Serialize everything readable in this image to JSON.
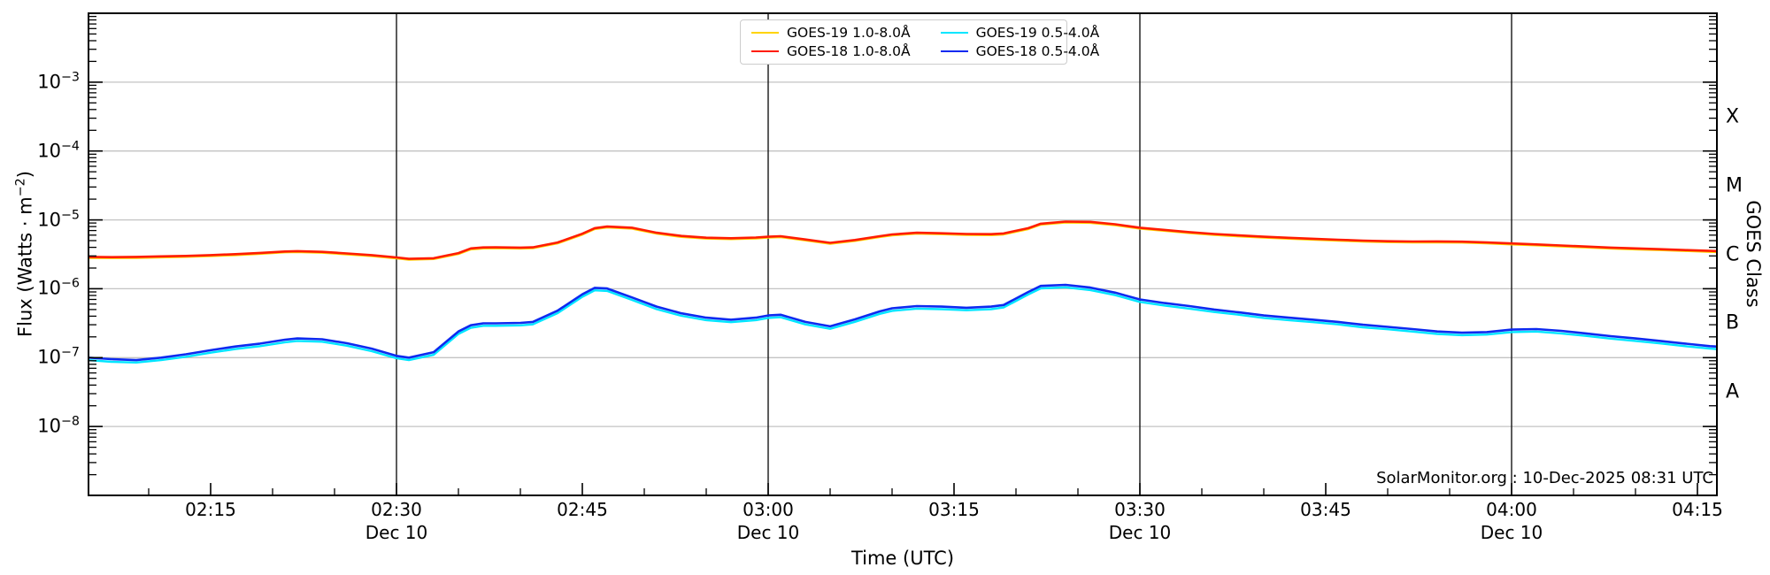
{
  "watermark": "SolarMonitor.org : 10-Dec-2025 08:31 UTC",
  "axes_text": {
    "xlabel": "Time (UTC)",
    "ylabel_parts": [
      "Flux (Watts · m",
      "−2",
      ")"
    ],
    "right_label": "GOES Class"
  },
  "colors": {
    "background": "#ffffff",
    "grid": "#c3c3c3",
    "vline": "#161616",
    "spine": "#000000",
    "legend_border": "#cccccc"
  },
  "chart_data": {
    "type": "line",
    "title": "",
    "xlabel": "Time (UTC)",
    "ylabel": "Flux (Watts · m⁻²)",
    "right_axis_label": "GOES Class",
    "x_axis": {
      "unit": "minutes after 02:00 UTC on 10-Dec-2025",
      "range_minutes": [
        5.14,
        136.57
      ],
      "tick_minutes": [
        15,
        30,
        45,
        60,
        75,
        90,
        105,
        120,
        135
      ],
      "tick_labels": [
        "02:15",
        "02:30",
        "02:45",
        "03:00",
        "03:15",
        "03:30",
        "03:45",
        "04:00",
        "04:15"
      ],
      "date_label": "Dec 10",
      "date_label_minutes": [
        30,
        60,
        90,
        120
      ],
      "vline_minutes": [
        30,
        60,
        90,
        120
      ],
      "minor_tick_step_minutes": 5
    },
    "y_axis": {
      "scale": "log",
      "unit": "Watts per square metre",
      "top_exponent": -2,
      "bottom_exponent": -9,
      "tick_label_exponents": [
        -3,
        -4,
        -5,
        -6,
        -7,
        -8
      ],
      "gridline_exponents": [
        -3,
        -4,
        -5,
        -6,
        -7,
        -8
      ],
      "grid": true
    },
    "goes_class_bands": [
      {
        "label": "X",
        "center_exponent": -3.5
      },
      {
        "label": "M",
        "center_exponent": -4.5
      },
      {
        "label": "C",
        "center_exponent": -5.5
      },
      {
        "label": "B",
        "center_exponent": -6.5
      },
      {
        "label": "A",
        "center_exponent": -7.5
      }
    ],
    "legend_position": "top center, 2 rows, column-major",
    "flux_scale": 1e-08,
    "x_minutes": [
      5.14,
      7,
      9,
      11,
      13,
      15,
      17,
      19,
      21,
      22,
      24,
      26,
      28,
      30,
      31,
      33,
      35,
      36,
      37,
      38,
      40,
      41,
      43,
      45,
      46,
      47,
      49,
      51,
      53,
      55,
      57,
      59,
      60,
      61,
      63,
      65,
      67,
      69,
      70,
      72,
      74,
      76,
      78,
      79,
      81,
      82,
      84,
      86,
      88,
      90,
      92,
      94,
      96,
      98,
      100,
      102,
      104,
      106,
      108,
      110,
      112,
      114,
      116,
      118,
      120,
      122,
      124,
      126,
      128,
      130,
      132,
      134,
      136,
      136.57
    ],
    "series": [
      {
        "name": "GOES-19 1.0-8.0Å",
        "color": "#ffd400",
        "line_width": 2.4,
        "values": [
          281,
          279,
          281,
          286,
          291,
          299,
          308,
          322,
          338,
          341,
          334,
          316,
          299,
          276,
          264,
          270,
          320,
          373,
          386,
          388,
          384,
          388,
          456,
          611,
          737,
          776,
          747,
          631,
          567,
          535,
          526,
          538,
          553,
          563,
          504,
          451,
          495,
          563,
          597,
          631,
          621,
          606,
          601,
          616,
          737,
          854,
          917,
          907,
          839,
          747,
          694,
          645,
          606,
          577,
          553,
          534,
          516,
          500,
          485,
          475,
          470,
          472,
          468,
          456,
          441,
          427,
          412,
          398,
          384,
          373,
          364,
          354,
          344,
          341
        ]
      },
      {
        "name": "GOES-18 1.0-8.0Å",
        "color": "#ff1c00",
        "line_width": 2.6,
        "values": [
          290,
          288,
          290,
          295,
          300,
          308,
          318,
          332,
          348,
          352,
          344,
          326,
          308,
          285,
          272,
          278,
          330,
          385,
          398,
          400,
          396,
          400,
          470,
          630,
          760,
          800,
          770,
          650,
          585,
          552,
          542,
          555,
          570,
          580,
          520,
          465,
          510,
          580,
          615,
          650,
          640,
          625,
          620,
          635,
          760,
          880,
          945,
          935,
          865,
          770,
          715,
          665,
          625,
          595,
          570,
          550,
          532,
          515,
          500,
          490,
          485,
          487,
          482,
          470,
          455,
          440,
          425,
          410,
          396,
          385,
          375,
          365,
          355,
          352
        ]
      },
      {
        "name": "GOES-19 0.5-4.0Å",
        "color": "#00e6ff",
        "line_width": 2.4,
        "values": [
          9.2,
          8.7,
          8.5,
          9.2,
          10.3,
          11.8,
          13.3,
          14.7,
          16.7,
          17.5,
          17,
          14.9,
          12.4,
          9.8,
          9.2,
          11,
          22.1,
          27.1,
          29,
          29,
          29.4,
          30.4,
          44.2,
          76.4,
          94.8,
          92.9,
          69,
          50.6,
          40.5,
          35,
          32.7,
          35,
          37.7,
          38.6,
          30.4,
          26.2,
          33.1,
          43.2,
          47.8,
          51.5,
          50.6,
          48.8,
          50.6,
          53.4,
          82.8,
          101.2,
          104.9,
          95.7,
          81,
          64.4,
          57,
          51.5,
          46,
          41.9,
          37.7,
          35,
          32.7,
          30.4,
          27.6,
          25.8,
          23.9,
          22.1,
          21.2,
          21.6,
          23.5,
          23.9,
          22.5,
          20.7,
          18.9,
          17.5,
          16.1,
          14.7,
          13.5,
          13.3
        ]
      },
      {
        "name": "GOES-18 0.5-4.0Å",
        "color": "#0d2af0",
        "line_width": 2.6,
        "values": [
          10,
          9.5,
          9.2,
          10,
          11.2,
          12.8,
          14.5,
          16,
          18.2,
          19,
          18.5,
          16.2,
          13.5,
          10.6,
          10,
          12,
          24,
          29.5,
          31.5,
          31.5,
          32,
          33,
          48,
          83,
          103,
          101,
          75,
          55,
          44,
          38,
          35.5,
          38,
          41,
          42,
          33,
          28.5,
          36,
          47,
          52,
          56,
          55,
          53,
          55,
          58,
          90,
          110,
          114,
          104,
          88,
          70,
          62,
          56,
          50,
          45.5,
          41,
          38,
          35.5,
          33,
          30,
          28,
          26,
          24,
          23,
          23.5,
          25.5,
          26,
          24.5,
          22.5,
          20.5,
          19,
          17.5,
          16,
          14.7,
          14.5
        ]
      }
    ]
  }
}
